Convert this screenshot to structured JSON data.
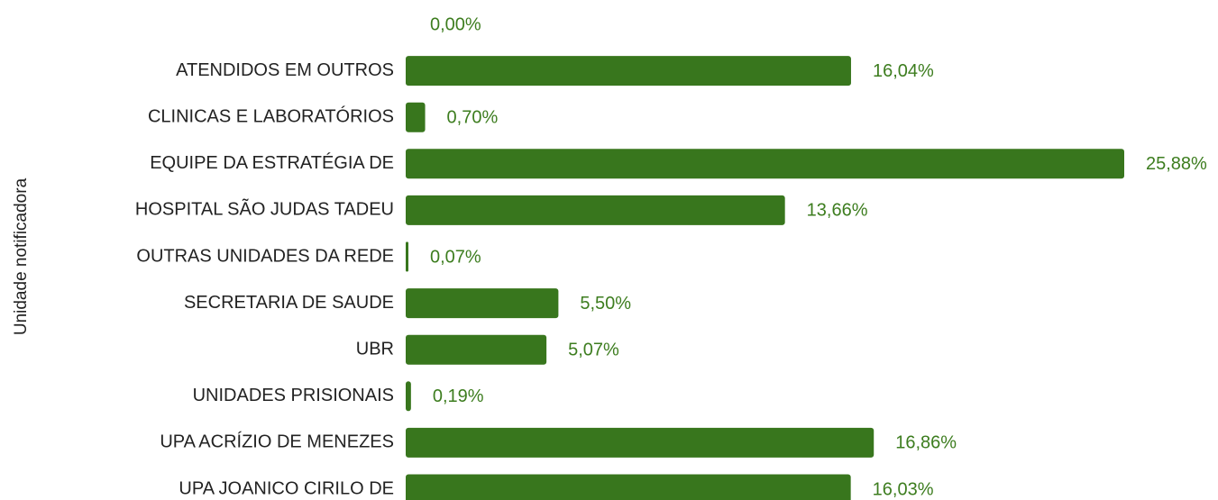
{
  "chart_data": {
    "type": "bar",
    "orientation": "horizontal",
    "y_label": "Unidade notificadora",
    "categories": [
      null,
      "ATENDIDOS EM OUTROS",
      "CLINICAS E LABORATÓRIOS",
      "EQUIPE DA ESTRATÉGIA DE",
      "HOSPITAL SÃO JUDAS TADEU",
      "OUTRAS UNIDADES DA REDE",
      "SECRETARIA DE SAUDE",
      "UBR",
      "UNIDADES PRISIONAIS",
      "UPA ACRÍZIO DE MENEZES",
      "UPA JOANICO CIRILO DE"
    ],
    "values": [
      0,
      16.04,
      0.7,
      25.88,
      13.66,
      0.07,
      5.5,
      5.07,
      0.19,
      16.86,
      16.03
    ],
    "value_labels": [
      "0,00%",
      "16,04%",
      "0,70%",
      "25,88%",
      "13,66%",
      "0,07%",
      "5,50%",
      "5,07%",
      "0,19%",
      "16,86%",
      "16,03%"
    ],
    "color": "#38761d"
  }
}
